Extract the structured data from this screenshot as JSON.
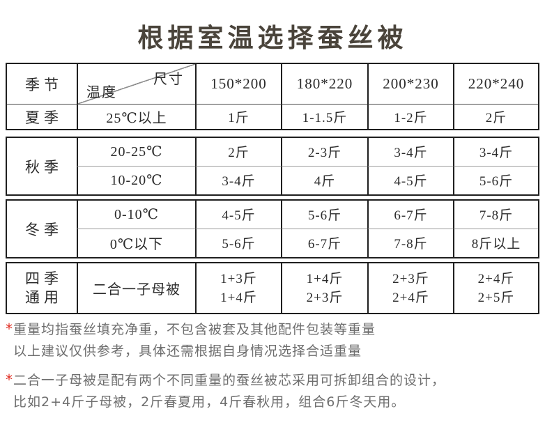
{
  "title": "根据室温选择蚕丝被",
  "table": {
    "season_header": "季节",
    "corner": {
      "size_label": "尺寸",
      "temp_label": "温度"
    },
    "sizes": [
      "150*200",
      "180*220",
      "200*230",
      "220*240"
    ],
    "sections": [
      {
        "season": "夏季",
        "rows": [
          {
            "temp": "25℃以上",
            "values": [
              "1斤",
              "1-1.5斤",
              "1-2斤",
              "2斤"
            ]
          }
        ]
      },
      {
        "season": "秋季",
        "rows": [
          {
            "temp": "20-25℃",
            "values": [
              "2斤",
              "2-3斤",
              "3-4斤",
              "3-4斤"
            ]
          },
          {
            "temp": "10-20℃",
            "values": [
              "3-4斤",
              "4斤",
              "4-5斤",
              "5-6斤"
            ]
          }
        ]
      },
      {
        "season": "冬季",
        "rows": [
          {
            "temp": "0-10℃",
            "values": [
              "4-5斤",
              "5-6斤",
              "6-7斤",
              "7-8斤"
            ]
          },
          {
            "temp": "0℃以下",
            "values": [
              "5-6斤",
              "6-7斤",
              "7-8斤",
              "8斤以上"
            ]
          }
        ]
      },
      {
        "season_lines": [
          "四季",
          "通用"
        ],
        "product": "二合一子母被",
        "values": [
          [
            "1+3斤",
            "1+4斤"
          ],
          [
            "1+4斤",
            "2+3斤"
          ],
          [
            "2+3斤",
            "2+4斤"
          ],
          [
            "2+4斤",
            "2+5斤"
          ]
        ]
      }
    ]
  },
  "notes": [
    {
      "marker": "*",
      "lines": [
        "重量均指蚕丝填充净重，不包含被套及其他配件包装等重量",
        "以上建议仅供参考，具体还需根据自身情况选择合适重量"
      ]
    },
    {
      "marker": "*",
      "lines": [
        "二合一子母被是配有两个不同重量的蚕丝被芯采用可拆卸组合的设计，",
        "比如2+4斤子母被，2斤春夏用，4斤春秋用，组合6斤冬天用。"
      ]
    }
  ],
  "colors": {
    "title_text": "#4a443b",
    "table_border": "#1f1f1f",
    "thin_divider": "#9c9c9c",
    "note_text": "#6e6e6e",
    "accent_red": "#e02a1f"
  }
}
